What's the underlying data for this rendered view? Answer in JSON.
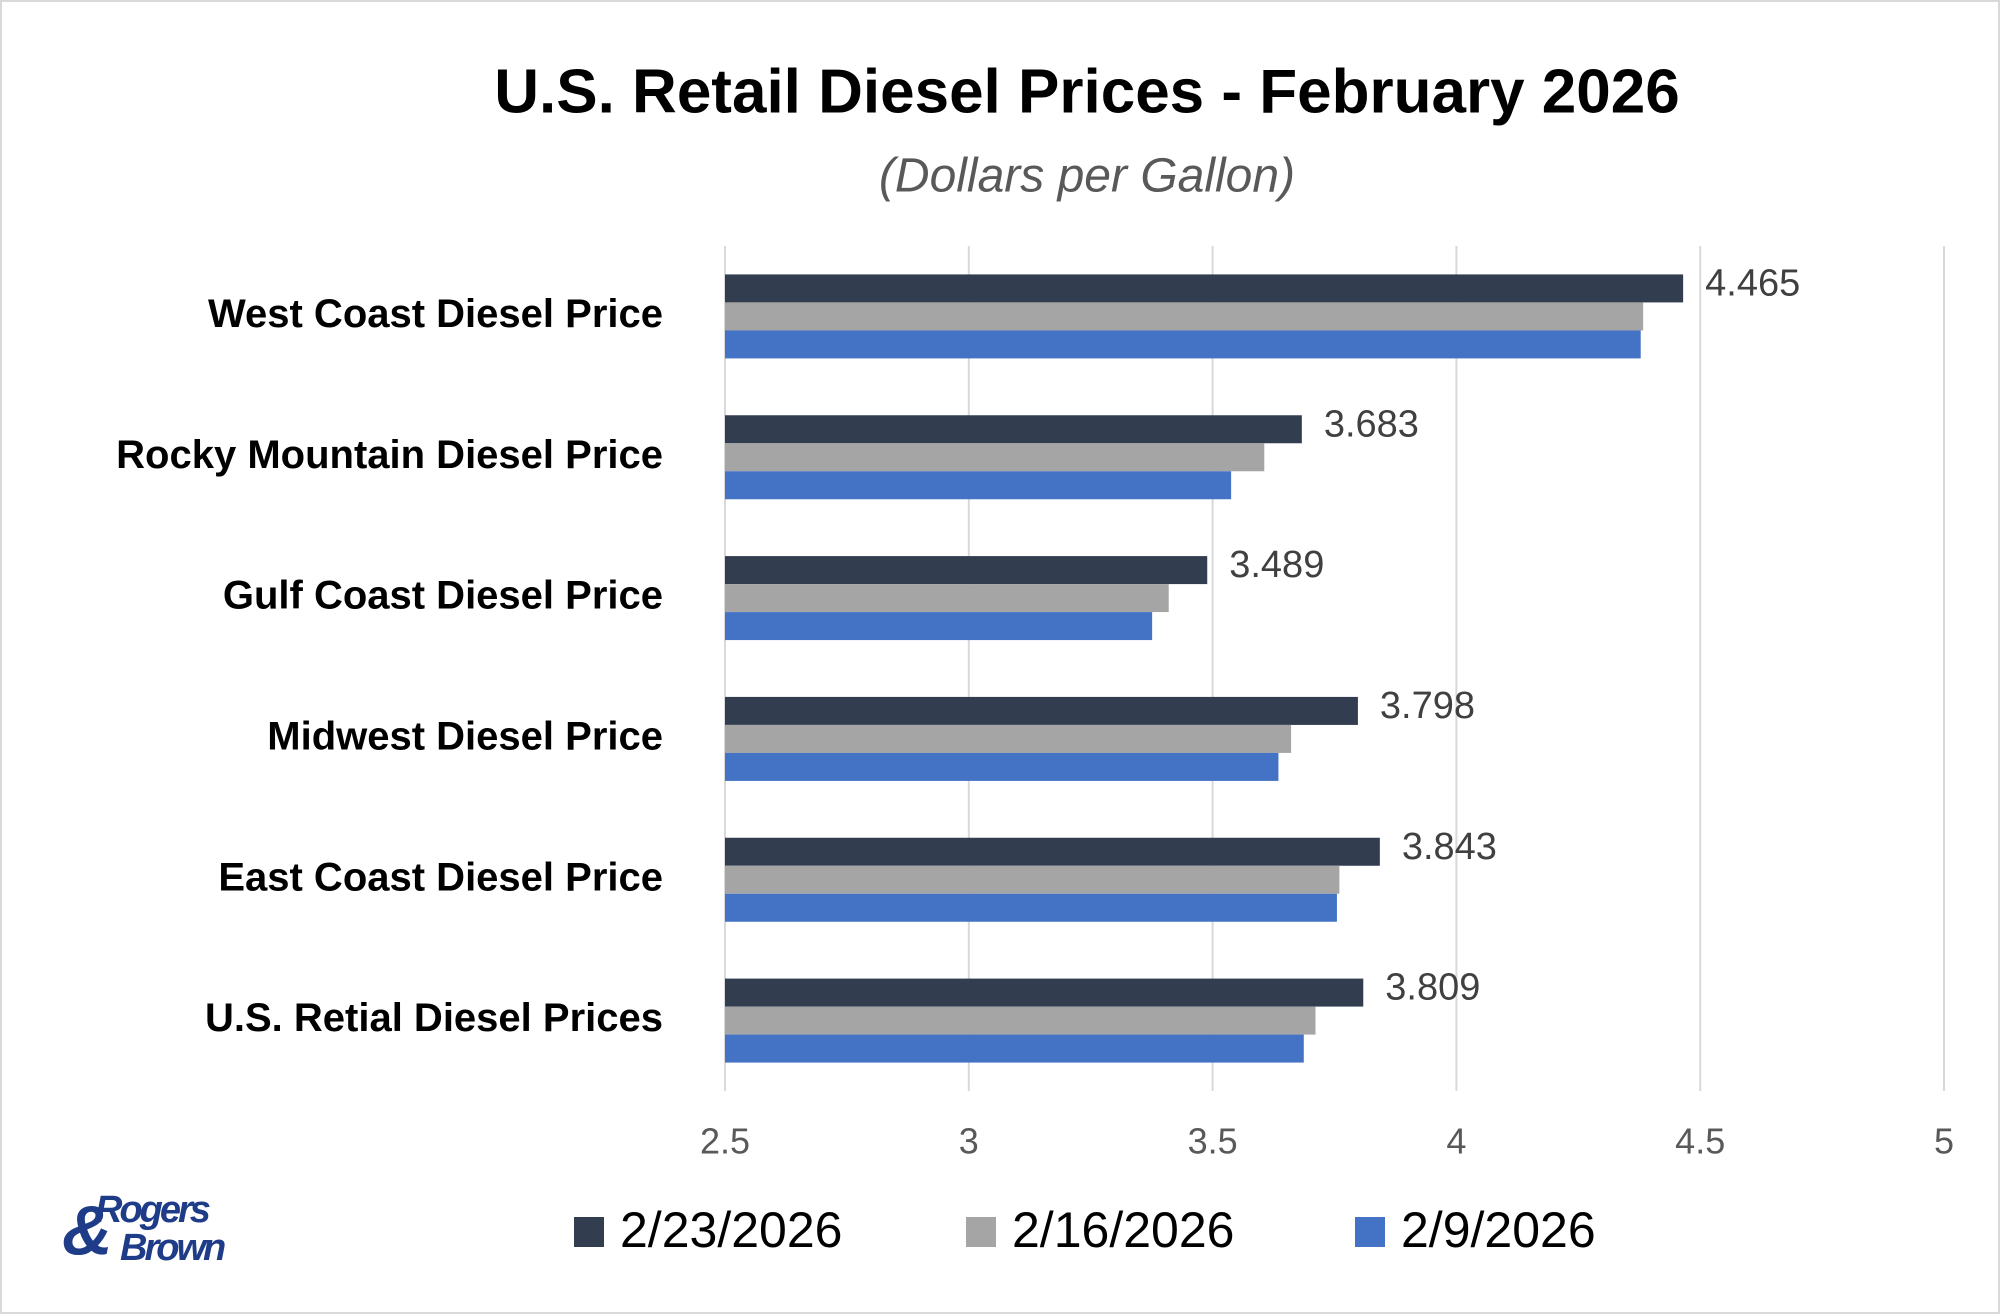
{
  "chart_data": {
    "type": "hbar",
    "title": "U.S. Retail Diesel Prices - February 2026",
    "subtitle": "(Dollars per Gallon)",
    "categories": [
      "West Coast Diesel Price",
      "Rocky Mountain Diesel Price",
      "Gulf Coast Diesel Price",
      "Midwest Diesel Price",
      "East Coast Diesel Price",
      "U.S. Retial Diesel Prices"
    ],
    "series": [
      {
        "name": "2/23/2026",
        "color": "#333d50",
        "values": [
          4.465,
          3.683,
          3.489,
          3.798,
          3.843,
          3.809
        ],
        "show_labels": true
      },
      {
        "name": "2/16/2026",
        "color": "#a5a5a5",
        "values": [
          4.383,
          3.606,
          3.41,
          3.661,
          3.76,
          3.711
        ],
        "show_labels": false
      },
      {
        "name": "2/9/2026",
        "color": "#4472c4",
        "values": [
          4.378,
          3.538,
          3.376,
          3.635,
          3.755,
          3.687
        ],
        "show_labels": false
      }
    ],
    "xlim": [
      2.5,
      5
    ],
    "xticks": [
      2.5,
      3,
      3.5,
      4,
      4.5,
      5
    ],
    "grid": true,
    "legend": "bottom"
  },
  "logo": {
    "line1": "Rogers",
    "line2": "Brown"
  }
}
